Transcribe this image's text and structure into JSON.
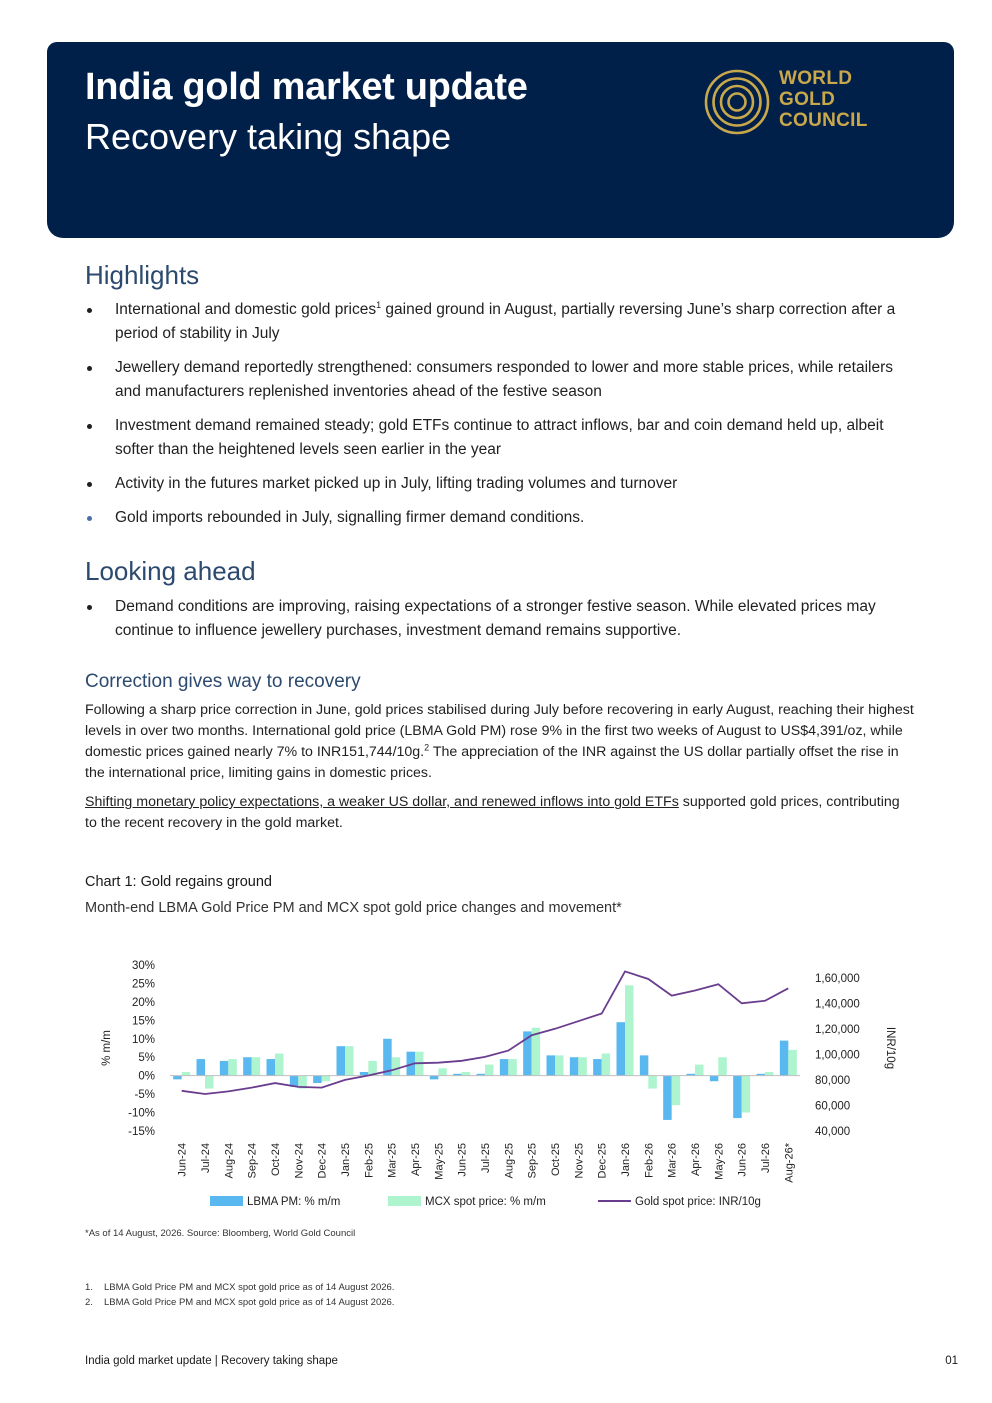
{
  "header": {
    "title": "India gold market update",
    "subtitle": "Recovery taking shape",
    "logo_lines": [
      "WORLD",
      "GOLD",
      "COUNCIL"
    ]
  },
  "highlights": {
    "heading": "Highlights",
    "items": [
      {
        "text_before": "International and domestic gold prices",
        "sup": "1",
        "text_after": " gained ground in August, partially reversing June’s sharp correction after a period of stability in July"
      },
      {
        "text": "Jewellery demand reportedly strengthened: consumers responded to lower and more stable prices, while retailers and manufacturers replenished inventories ahead of the festive season"
      },
      {
        "text": "Investment demand remained steady; gold ETFs continue to attract inflows, bar and coin demand held up, albeit softer than the heightened levels seen earlier in the year"
      },
      {
        "text": "Activity in the futures market picked up in July, lifting trading volumes and turnover"
      },
      {
        "text": "Gold imports rebounded in July, signalling firmer demand conditions."
      }
    ]
  },
  "looking_ahead": {
    "heading": "Looking ahead",
    "items": [
      {
        "text": "Demand conditions are improving, raising expectations of a stronger festive season. While elevated prices may continue to influence jewellery purchases, investment demand remains supportive."
      }
    ]
  },
  "section": {
    "heading": "Correction gives way to recovery",
    "para1_before": "Following a sharp price correction in June, gold prices stabilised during July before recovering in early August, reaching their highest levels in over two months. International gold price (LBMA Gold PM) rose 9% in the first two weeks of August to US$4,391/oz, while domestic prices gained nearly 7% to INR151,744/10g.",
    "para1_sup": "2",
    "para1_after": " The appreciation of the INR against the US dollar partially offset the rise in the international price, limiting gains in domestic prices.",
    "para2_link": "Shifting monetary policy expectations, a weaker US dollar, and renewed inflows into gold ETFs",
    "para2_after": " supported gold prices, contributing to the recent recovery in the gold market."
  },
  "chart": {
    "title": "Chart 1: Gold regains ground",
    "subtitle": "Month-end LBMA Gold Price PM and MCX spot gold price changes and movement*"
  },
  "chart_data": {
    "type": "bar",
    "categories": [
      "Jun-24",
      "Jul-24",
      "Aug-24",
      "Sep-24",
      "Oct-24",
      "Nov-24",
      "Dec-24",
      "Jan-25",
      "Feb-25",
      "Mar-25",
      "Apr-25",
      "May-25",
      "Jun-25",
      "Jul-25",
      "Aug-25",
      "Sep-25",
      "Oct-25",
      "Nov-25",
      "Dec-25",
      "Jan-26",
      "Feb-26",
      "Mar-26",
      "Apr-26",
      "May-26",
      "Jun-26",
      "Jul-26",
      "Aug-26*"
    ],
    "series": [
      {
        "name": "LBMA PM: % m/m",
        "type": "bar",
        "axis": "left",
        "color": "#5ab8f0",
        "values": [
          -1,
          4.5,
          4,
          5,
          4.5,
          -3,
          -2,
          8,
          1,
          10,
          6.5,
          -1,
          0.5,
          0.5,
          4.5,
          12,
          5.5,
          5,
          4.5,
          14.5,
          5.5,
          -12,
          0.5,
          -1.5,
          -11.5,
          0.5,
          9.5
        ]
      },
      {
        "name": "MCX spot price: % m/m",
        "type": "bar",
        "axis": "left",
        "color": "#aef5cf",
        "values": [
          1,
          -3.5,
          4.5,
          5,
          6,
          -3.5,
          -1.5,
          8,
          4,
          5,
          6.5,
          2,
          1,
          3,
          4.5,
          13,
          5.5,
          5,
          6,
          24.5,
          -3.5,
          -8,
          3,
          5,
          -10,
          1,
          7
        ]
      },
      {
        "name": "Gold spot price: INR/10g",
        "type": "line",
        "axis": "right",
        "color": "#6a3d8f",
        "values": [
          71500,
          69000,
          71000,
          74000,
          77500,
          74500,
          74000,
          80000,
          83500,
          87500,
          93000,
          93500,
          95000,
          98000,
          103000,
          115000,
          120000,
          126000,
          132000,
          165000,
          159000,
          146000,
          150000,
          155000,
          140000,
          142000,
          151744
        ]
      }
    ],
    "left_axis": {
      "label": "% m/m",
      "min": -15,
      "max": 30,
      "ticks": [
        "30%",
        "25%",
        "20%",
        "15%",
        "10%",
        "5%",
        "0%",
        "-5%",
        "-10%",
        "-15%"
      ]
    },
    "right_axis": {
      "label": "INR/10g",
      "min": 40000,
      "max": 170000,
      "ticks": [
        "1,60,000",
        "1,40,000",
        "1,20,000",
        "1,00,000",
        "80,000",
        "60,000",
        "40,000"
      ]
    },
    "legend_position": "bottom",
    "grid": false
  },
  "notes": {
    "chart_note": "*As of 14 August, 2026. Source: Bloomberg, World Gold Council",
    "footnotes": [
      {
        "num": "1.",
        "text": "LBMA Gold Price PM and MCX spot gold price as of 14 August 2026."
      },
      {
        "num": "2.",
        "text": "LBMA Gold Price PM and MCX spot gold price as of 14 August 2026."
      }
    ]
  },
  "footer": {
    "left": "India gold market update | Recovery taking shape",
    "page": "01"
  },
  "colors": {
    "header_bg": "#00204a",
    "logo_gold": "#c9a84c",
    "heading_blue": "#2c4a6e"
  }
}
